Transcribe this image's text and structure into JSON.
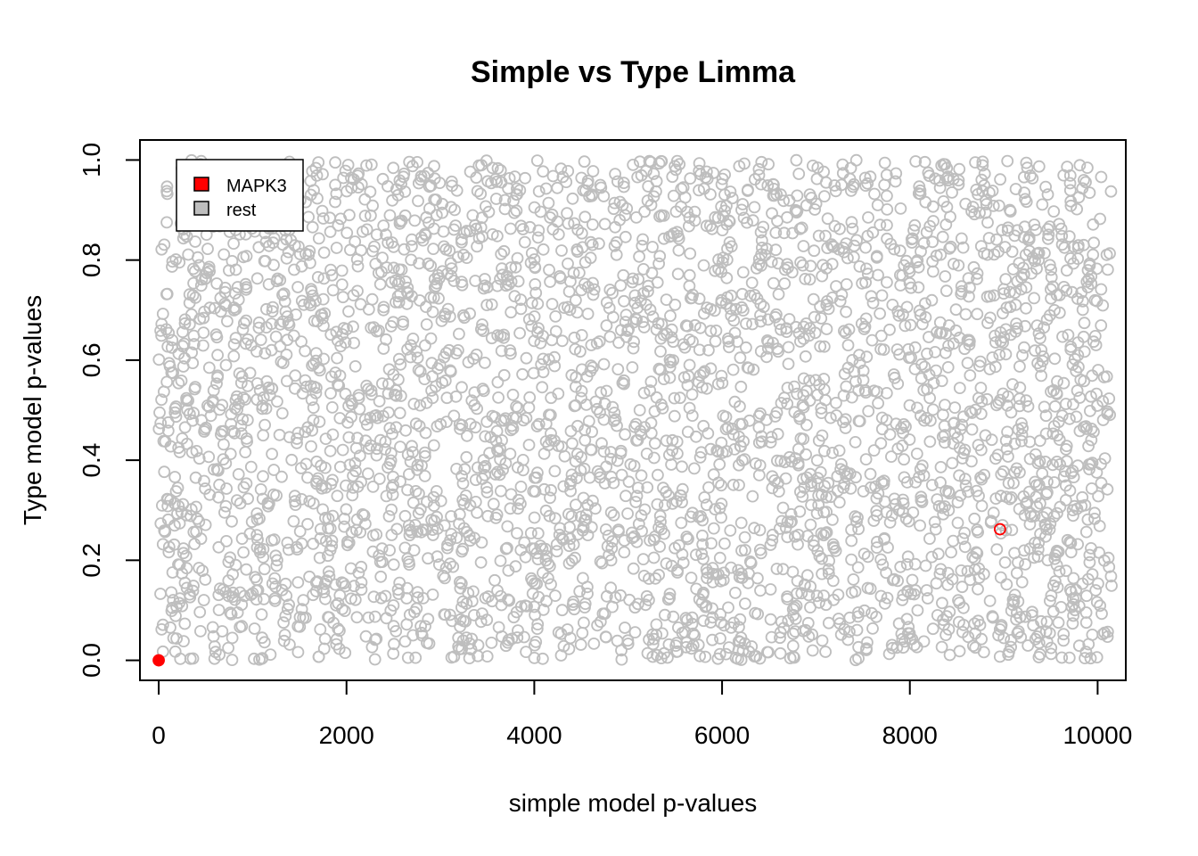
{
  "chart_data": {
    "type": "scatter",
    "title": "Simple vs Type Limma",
    "xlabel": "simple model p-values",
    "ylabel": "Type model p-values",
    "xlim": [
      -200,
      10300
    ],
    "ylim": [
      -0.04,
      1.04
    ],
    "xticks": [
      0,
      2000,
      4000,
      6000,
      8000,
      10000
    ],
    "xtick_labels": [
      "0",
      "2000",
      "4000",
      "6000",
      "8000",
      "10000"
    ],
    "yticks": [
      0.0,
      0.2,
      0.4,
      0.6,
      0.8,
      1.0
    ],
    "ytick_labels": [
      "0.0",
      "0.2",
      "0.4",
      "0.6",
      "0.8",
      "1.0"
    ],
    "grid": false,
    "legend_position": "top-left",
    "series": [
      {
        "name": "rest",
        "color": "#bebebe",
        "marker": "open-circle",
        "count": 10150,
        "x_range": [
          0,
          10150
        ],
        "y_range": [
          0,
          1
        ],
        "distribution": "uniform random"
      },
      {
        "name": "MAPK3",
        "color": "#ff0000",
        "marker": "open-circle",
        "points": [
          {
            "x": 0,
            "y": 0.0
          },
          {
            "x": 8960,
            "y": 0.262
          }
        ]
      }
    ],
    "legend": [
      {
        "label": "MAPK3",
        "color": "#ff0000"
      },
      {
        "label": "rest",
        "color": "#bebebe"
      }
    ]
  }
}
